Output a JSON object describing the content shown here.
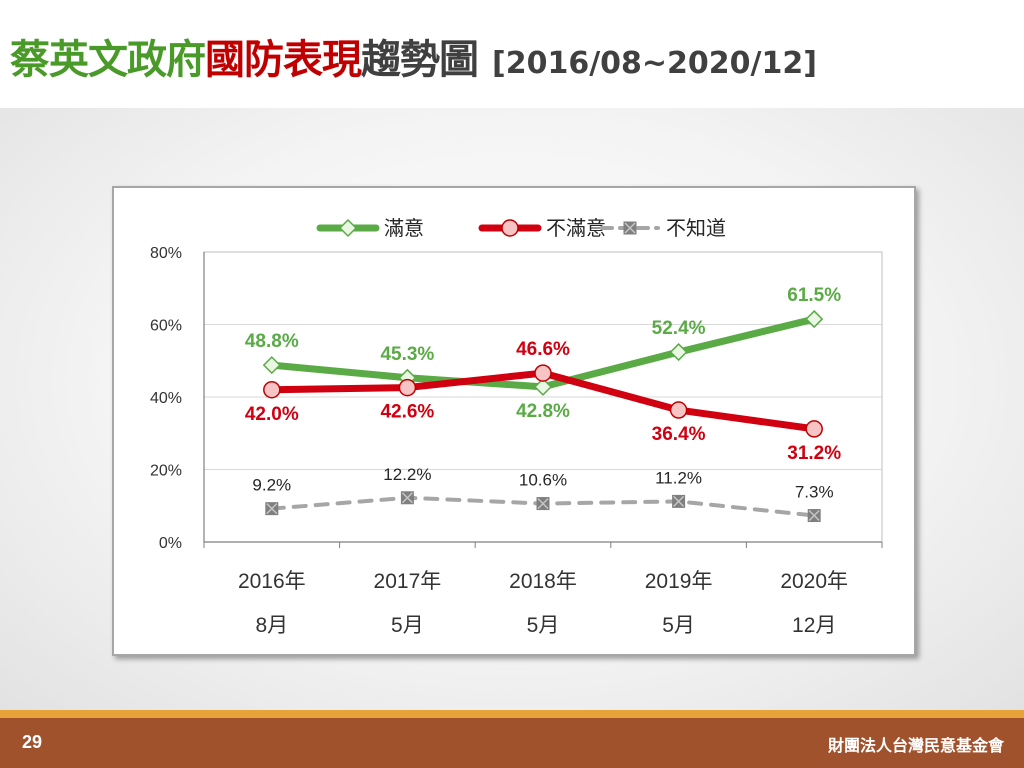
{
  "title": {
    "part1": "蔡英文政府",
    "part2": "國防表現",
    "part3": "趨勢圖",
    "range": "[2016/08~2020/12]"
  },
  "footer": {
    "page_number": "29",
    "organization": "財團法人台灣民意基金會"
  },
  "colors": {
    "satisfied": "#5aaa46",
    "dissatisfied": "#d00010",
    "unknown": "#a6a6a6",
    "title_green": "#4a9a2a",
    "title_red": "#c00000",
    "footer_bg": "#a0522d",
    "footer_stripe": "#e8a23a"
  },
  "chart_data": {
    "type": "line",
    "categories": [
      [
        "2016年",
        "8月"
      ],
      [
        "2017年",
        "5月"
      ],
      [
        "2018年",
        "5月"
      ],
      [
        "2019年",
        "5月"
      ],
      [
        "2020年",
        "12月"
      ]
    ],
    "y_ticks": [
      "0%",
      "20%",
      "40%",
      "60%",
      "80%"
    ],
    "ylim": [
      0,
      80
    ],
    "grid": true,
    "legend_position": "top",
    "series": [
      {
        "name": "滿意",
        "values": [
          48.8,
          45.3,
          42.8,
          52.4,
          61.5
        ],
        "labels": [
          "48.8%",
          "45.3%",
          "42.8%",
          "52.4%",
          "61.5%"
        ],
        "label_side": [
          "above",
          "above",
          "below",
          "above",
          "above"
        ],
        "color": "#5aaa46",
        "marker": "diamond",
        "style": "solid"
      },
      {
        "name": "不滿意",
        "values": [
          42.0,
          42.6,
          46.6,
          36.4,
          31.2
        ],
        "labels": [
          "42.0%",
          "42.6%",
          "46.6%",
          "36.4%",
          "31.2%"
        ],
        "label_side": [
          "below",
          "below",
          "above",
          "below",
          "below"
        ],
        "color": "#d00010",
        "marker": "circle",
        "style": "solid"
      },
      {
        "name": "不知道",
        "values": [
          9.2,
          12.2,
          10.6,
          11.2,
          7.3
        ],
        "labels": [
          "9.2%",
          "12.2%",
          "10.6%",
          "11.2%",
          "7.3%"
        ],
        "label_side": [
          "above",
          "above",
          "above",
          "above",
          "above"
        ],
        "color": "#a6a6a6",
        "marker": "square-x",
        "style": "dashed"
      }
    ]
  }
}
